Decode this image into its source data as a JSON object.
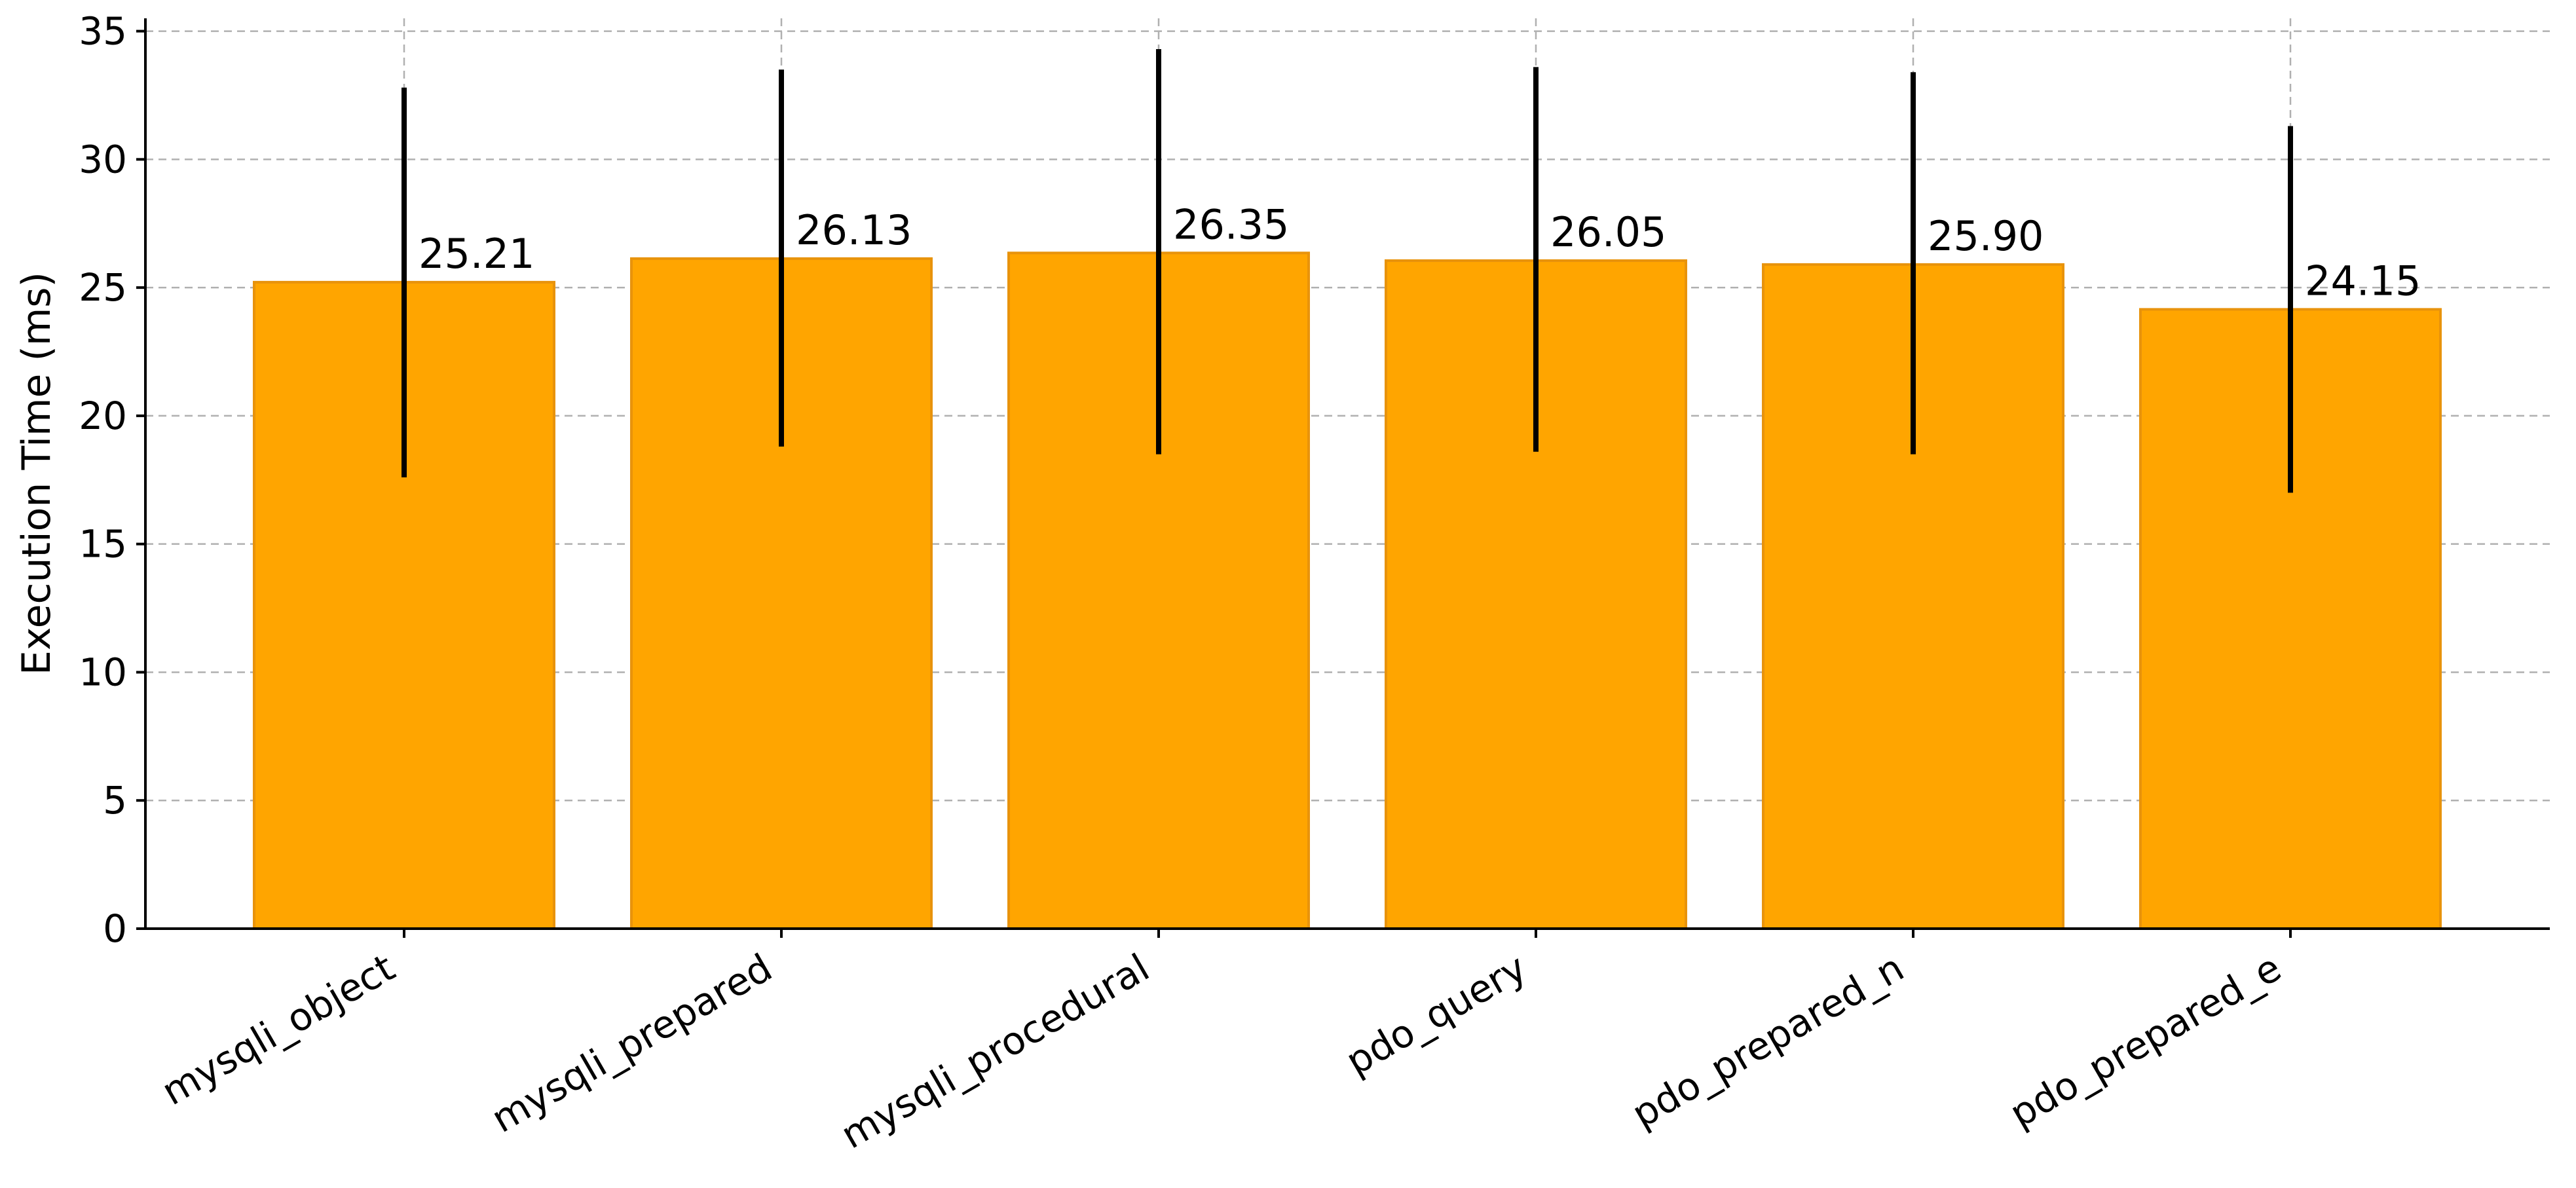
{
  "chart_data": {
    "type": "bar",
    "title": "",
    "xlabel": "",
    "ylabel": "Execution Time (ms)",
    "ylim": [
      0,
      35.5
    ],
    "yticks": [
      0,
      5,
      10,
      15,
      20,
      25,
      30,
      35
    ],
    "grid": true,
    "categories": [
      "mysqli_object",
      "mysqli_prepared",
      "mysqli_procedural",
      "pdo_query",
      "pdo_prepared_n",
      "pdo_prepared_e"
    ],
    "values": [
      25.21,
      26.13,
      26.35,
      26.05,
      25.9,
      24.15
    ],
    "value_labels": [
      "25.21",
      "26.13",
      "26.35",
      "26.05",
      "25.90",
      "24.15"
    ],
    "error_low": [
      17.6,
      18.8,
      18.5,
      18.6,
      18.5,
      17.0
    ],
    "error_high": [
      32.8,
      33.5,
      34.3,
      33.6,
      33.4,
      31.3
    ],
    "colors": {
      "bar_fill": "#FFA500",
      "bar_edge": "#E8930C",
      "error_bar": "#000000"
    }
  }
}
